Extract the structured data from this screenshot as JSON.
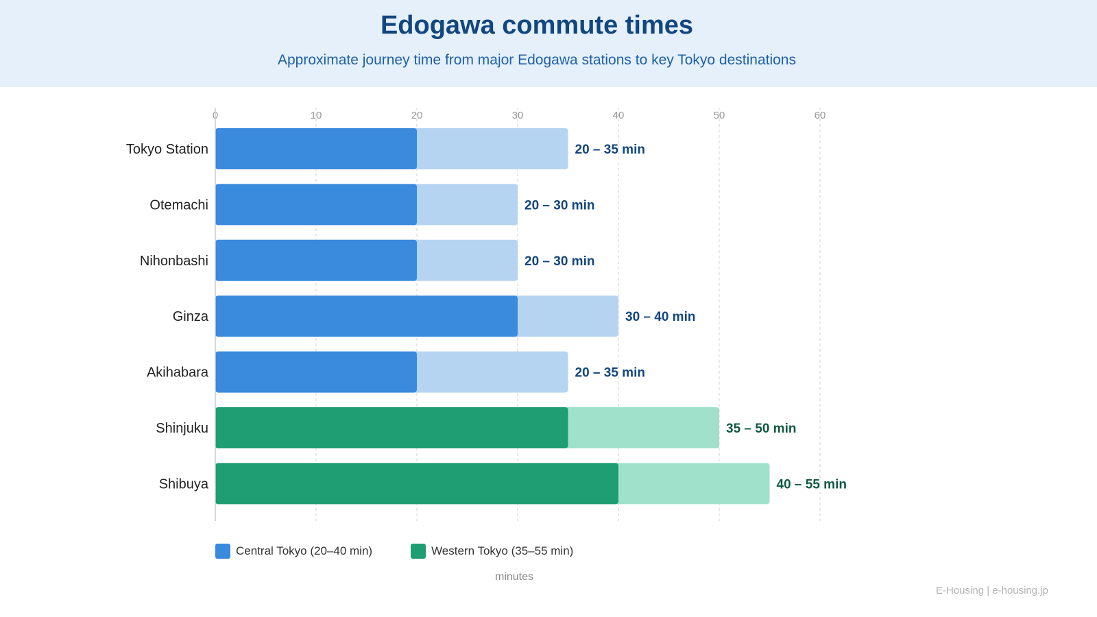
{
  "header": {
    "title": "Edogawa commute times",
    "subtitle": "Approximate journey time from major Edogawa stations to key Tokyo destinations"
  },
  "chart_data": {
    "type": "bar",
    "orientation": "horizontal",
    "stacked_range": true,
    "title": "Edogawa commute times",
    "subtitle": "Approximate journey time from major Edogawa stations to key Tokyo destinations",
    "xlabel": "minutes",
    "ylabel": "",
    "xlim": [
      0,
      60
    ],
    "xticks": [
      0,
      10,
      20,
      30,
      40,
      50,
      60
    ],
    "grid": "vertical dashed",
    "legend_position": "bottom-left",
    "categories": [
      "Tokyo Station",
      "Otemachi",
      "Nihonbashi",
      "Ginza",
      "Akihabara",
      "Shinjuku",
      "Shibuya"
    ],
    "min_values": [
      20,
      20,
      20,
      30,
      20,
      35,
      40
    ],
    "max_values": [
      35,
      30,
      30,
      40,
      35,
      50,
      55
    ],
    "range_labels": [
      "20 – 35 min",
      "20 – 30 min",
      "20 – 30 min",
      "30 – 40 min",
      "20 – 35 min",
      "35 – 50 min",
      "40 – 55 min"
    ],
    "groups": [
      "Central Tokyo",
      "Central Tokyo",
      "Central Tokyo",
      "Central Tokyo",
      "Central Tokyo",
      "Western Tokyo",
      "Western Tokyo"
    ],
    "series": [
      {
        "name": "Central Tokyo (20–40 min)",
        "color": "#3a8ade",
        "light_color": "#b5d4f2",
        "label_color": "#12467f"
      },
      {
        "name": "Western Tokyo (35–55 min)",
        "color": "#1e9e72",
        "light_color": "#a0e1cb",
        "label_color": "#0f5a40"
      }
    ]
  },
  "legend": {
    "central_label": "Central Tokyo (20–40 min)",
    "western_label": "Western Tokyo (35–55 min)"
  },
  "footer": {
    "text": "E-Housing | e-housing.jp"
  }
}
